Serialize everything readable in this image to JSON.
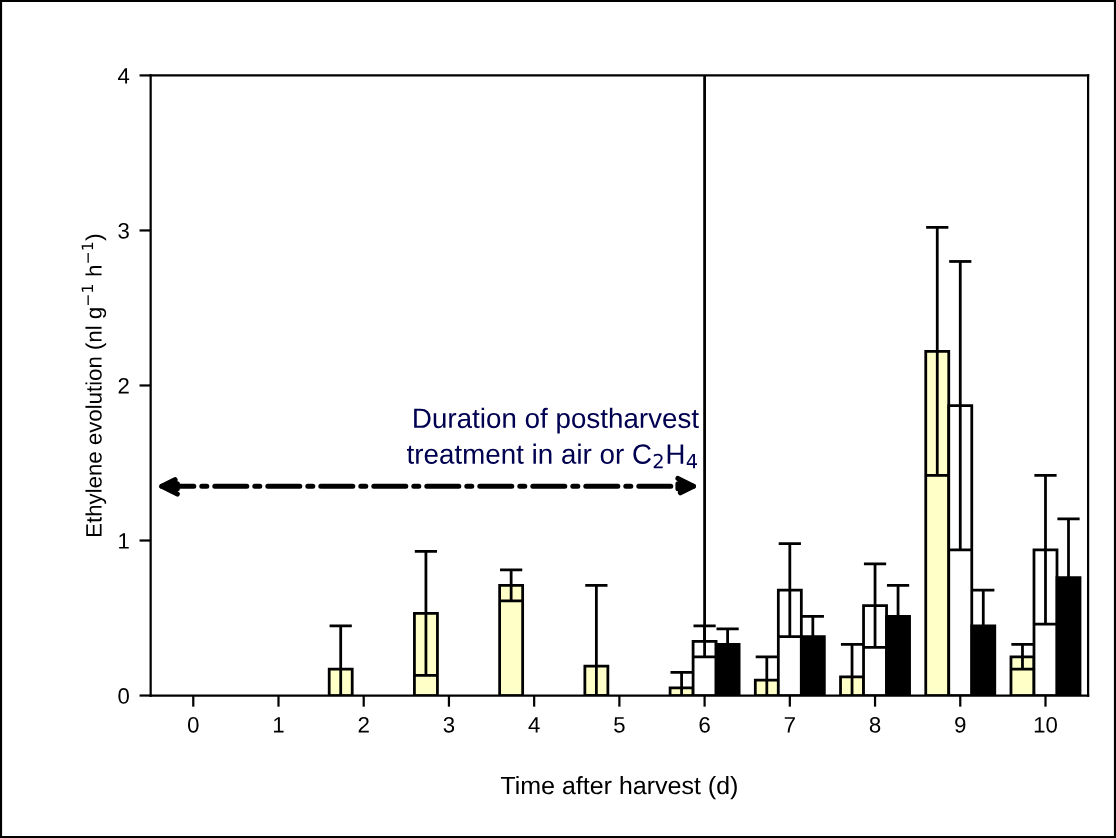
{
  "chart_data": {
    "type": "bar",
    "xlabel": "Time after harvest (d)",
    "ylabel": "Ethylene evolution (nl g$^{−1}$ h$^{−1}$)",
    "categories": [
      "0",
      "1",
      "2",
      "3",
      "4",
      "5",
      "6",
      "7",
      "8",
      "9",
      "10"
    ],
    "series": [
      {
        "color": "#ffffc8",
        "values": [
          null,
          null,
          0.17,
          0.53,
          0.71,
          0.19,
          0.05,
          0.1,
          0.12,
          2.22,
          0.25
        ],
        "errors": [
          null,
          null,
          0.28,
          0.4,
          0.1,
          [
            0,
            0.71
          ],
          0.1,
          0.15,
          0.21,
          0.8,
          0.08
        ]
      },
      {
        "color": "#ffffff",
        "values": [
          null,
          null,
          null,
          null,
          null,
          null,
          0.35,
          0.68,
          0.58,
          1.87,
          0.94
        ],
        "errors": [
          null,
          null,
          null,
          null,
          null,
          null,
          0.1,
          0.3,
          0.27,
          0.93,
          0.48
        ]
      },
      {
        "color": "#000000",
        "values": [
          null,
          null,
          null,
          null,
          null,
          null,
          0.33,
          0.38,
          0.51,
          0.45,
          0.76
        ],
        "errors": [
          null,
          null,
          null,
          null,
          null,
          null,
          0.1,
          0.13,
          0.2,
          0.23,
          0.38
        ]
      }
    ],
    "ylim": [
      0,
      4
    ],
    "yticks": [
      0,
      1,
      2,
      3,
      4
    ],
    "grid": false,
    "legend": false,
    "ref_lines": [
      {
        "axis": "x",
        "value": "6",
        "color": "#000000"
      }
    ],
    "annotations": [
      {
        "text": "Duration of postharvest\ntreatment in air or C$_{2}$H$_{4}$",
        "x": "6",
        "y": 1.35
      }
    ]
  }
}
